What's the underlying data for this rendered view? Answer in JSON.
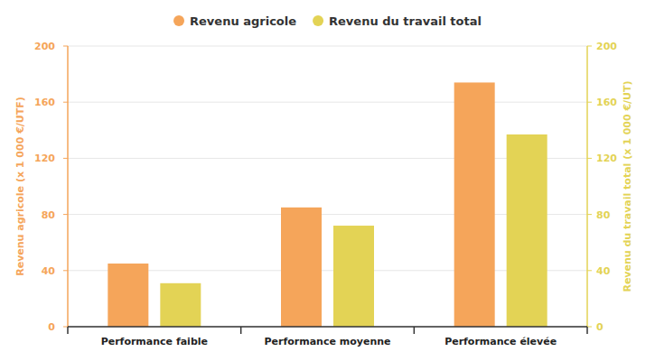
{
  "chart_data": {
    "type": "bar",
    "categories": [
      "Performance faible",
      "Performance moyenne",
      "Performance élevée"
    ],
    "series": [
      {
        "name": "Revenu agricole",
        "color": "#f5a55a",
        "values": [
          45,
          85,
          174
        ]
      },
      {
        "name": "Revenu du travail total",
        "color": "#e3d355",
        "values": [
          31,
          72,
          137
        ],
        "axis": "y2"
      }
    ],
    "ylabel": "Revenu agricole (x 1 000 €/UTF)",
    "y2label": "Revenu du travail total (x 1 000 €/UT)",
    "ylim": [
      0,
      200
    ],
    "yticks": [
      0,
      40,
      80,
      120,
      160,
      200
    ],
    "y2lim": [
      0,
      200
    ],
    "y2ticks": [
      0,
      40,
      80,
      120,
      160,
      200
    ],
    "grid": true,
    "legend": "top"
  }
}
